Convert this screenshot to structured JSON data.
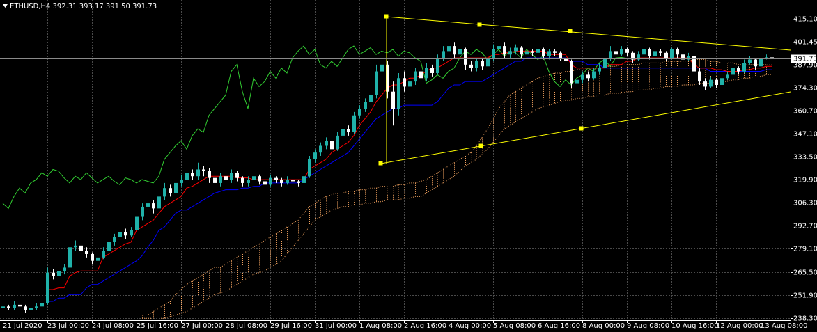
{
  "chart_data": {
    "type": "candlestick",
    "header": "ETHUSD,H4  392.31 393.17 391.50 391.73",
    "categories": [
      "21 Jul 2020",
      null,
      null,
      null,
      null,
      null,
      null,
      null,
      "23 Jul 00:00",
      null,
      null,
      null,
      null,
      null,
      null,
      null,
      "24 Jul 08:00",
      null,
      null,
      null,
      null,
      null,
      null,
      null,
      "25 Jul 16:00",
      null,
      null,
      null,
      null,
      null,
      null,
      null,
      "27 Jul 00:00",
      null,
      null,
      null,
      null,
      null,
      null,
      null,
      "28 Jul 08:00",
      null,
      null,
      null,
      null,
      null,
      null,
      null,
      "29 Jul 16:00",
      null,
      null,
      null,
      null,
      null,
      null,
      null,
      "31 Jul 00:00",
      null,
      null,
      null,
      null,
      null,
      null,
      null,
      "1 Aug 08:00",
      null,
      null,
      null,
      null,
      null,
      null,
      null,
      "2 Aug 16:00",
      null,
      null,
      null,
      null,
      null,
      null,
      null,
      "4 Aug 00:00",
      null,
      null,
      null,
      null,
      null,
      null,
      null,
      "5 Aug 08:00",
      null,
      null,
      null,
      null,
      null,
      null,
      null,
      "6 Aug 16:00",
      null,
      null,
      null,
      null,
      null,
      null,
      null,
      "8 Aug 00:00",
      null,
      null,
      null,
      null,
      null,
      null,
      null,
      "9 Aug 08:00",
      null,
      null,
      null,
      null,
      null,
      null,
      null,
      "10 Aug 16:00",
      null,
      null,
      null,
      null,
      null,
      null,
      null,
      "12 Aug 00:00",
      null,
      null,
      null,
      null,
      null,
      null,
      null,
      "13 Aug 08:00",
      null,
      null
    ],
    "open": [
      244,
      245,
      244,
      246,
      245,
      243,
      244,
      245,
      247,
      265,
      263,
      266,
      268,
      280,
      281,
      278,
      276,
      272,
      274,
      278,
      283,
      286,
      289,
      287,
      290,
      298,
      304,
      306,
      303,
      310,
      315,
      312,
      318,
      320,
      324,
      322,
      326,
      325,
      321,
      318,
      322,
      320,
      324,
      321,
      318,
      320,
      322,
      319,
      317,
      321,
      320,
      318,
      320,
      319,
      318,
      322,
      332,
      336,
      340,
      343,
      338,
      346,
      350,
      348,
      358,
      362,
      366,
      370,
      384,
      388,
      372,
      362,
      380,
      375,
      378,
      384,
      380,
      386,
      383,
      392,
      396,
      399,
      394,
      397,
      388,
      386,
      390,
      387,
      392,
      397,
      399,
      394,
      396,
      398,
      394,
      396,
      395,
      397,
      393,
      396,
      395,
      392,
      390,
      377,
      379,
      382,
      380,
      384,
      386,
      392,
      396,
      394,
      397,
      395,
      391,
      394,
      397,
      393,
      396,
      395,
      392,
      397,
      394,
      391,
      393,
      384,
      378,
      375,
      379,
      376,
      380,
      382,
      386,
      384,
      389,
      391,
      387,
      392,
      392.31
    ],
    "high": [
      247,
      246,
      248,
      247,
      246,
      246,
      247,
      249,
      268,
      267,
      268,
      270,
      283,
      284,
      282,
      280,
      277,
      276,
      280,
      285,
      288,
      291,
      291,
      292,
      300,
      306,
      309,
      308,
      312,
      318,
      317,
      320,
      323,
      327,
      326,
      330,
      328,
      327,
      323,
      324,
      323,
      326,
      325,
      322,
      322,
      324,
      323,
      320,
      323,
      322,
      321,
      322,
      321,
      320,
      324,
      334,
      338,
      342,
      345,
      344,
      348,
      352,
      352,
      360,
      364,
      368,
      372,
      388,
      405,
      390,
      378,
      383,
      384,
      381,
      386,
      386,
      389,
      388,
      394,
      399,
      402,
      401,
      399,
      398,
      390,
      392,
      392,
      394,
      400,
      408,
      401,
      398,
      400,
      399,
      398,
      397,
      398,
      398,
      397,
      397,
      396,
      394,
      391,
      381,
      384,
      384,
      386,
      389,
      394,
      399,
      398,
      399,
      398,
      396,
      396,
      400,
      398,
      397,
      397,
      396,
      398,
      398,
      395,
      395,
      394,
      386,
      380,
      381,
      380,
      382,
      384,
      388,
      387,
      391,
      393,
      392,
      394,
      394,
      393.17
    ],
    "low": [
      242,
      243,
      243,
      244,
      241,
      242,
      243,
      244,
      246,
      261,
      262,
      264,
      267,
      278,
      276,
      274,
      270,
      270,
      273,
      277,
      281,
      285,
      285,
      286,
      289,
      296,
      302,
      300,
      301,
      308,
      310,
      311,
      316,
      318,
      320,
      320,
      322,
      318,
      315,
      316,
      317,
      318,
      319,
      316,
      316,
      318,
      317,
      315,
      316,
      318,
      316,
      317,
      317,
      316,
      317,
      321,
      330,
      334,
      338,
      336,
      337,
      344,
      346,
      347,
      356,
      360,
      364,
      368,
      380,
      368,
      352,
      358,
      372,
      373,
      376,
      377,
      378,
      381,
      382,
      390,
      394,
      392,
      392,
      385,
      384,
      384,
      385,
      386,
      390,
      396,
      392,
      392,
      394,
      392,
      392,
      393,
      393,
      391,
      391,
      393,
      390,
      388,
      374,
      375,
      377,
      378,
      379,
      382,
      385,
      390,
      392,
      393,
      393,
      389,
      390,
      393,
      391,
      392,
      393,
      390,
      391,
      392,
      389,
      390,
      382,
      376,
      373,
      374,
      374,
      375,
      379,
      381,
      382,
      383,
      388,
      385,
      386,
      391,
      391.5
    ],
    "close": [
      245,
      244,
      246,
      245,
      243,
      244,
      245,
      247,
      265,
      263,
      266,
      268,
      280,
      281,
      278,
      276,
      272,
      274,
      278,
      283,
      286,
      289,
      287,
      290,
      298,
      304,
      306,
      303,
      310,
      315,
      312,
      318,
      320,
      324,
      322,
      326,
      325,
      321,
      318,
      322,
      320,
      324,
      321,
      318,
      320,
      322,
      319,
      317,
      321,
      320,
      318,
      320,
      319,
      318,
      322,
      332,
      336,
      340,
      343,
      338,
      346,
      350,
      348,
      358,
      362,
      366,
      370,
      384,
      388,
      372,
      362,
      380,
      375,
      378,
      384,
      380,
      386,
      383,
      392,
      396,
      399,
      394,
      397,
      388,
      386,
      390,
      387,
      392,
      397,
      399,
      394,
      396,
      398,
      394,
      396,
      395,
      397,
      393,
      396,
      395,
      392,
      390,
      377,
      379,
      382,
      380,
      384,
      386,
      392,
      396,
      394,
      397,
      395,
      391,
      394,
      397,
      393,
      396,
      395,
      392,
      397,
      394,
      391,
      393,
      384,
      378,
      375,
      379,
      376,
      380,
      382,
      386,
      384,
      389,
      391,
      387,
      392,
      392.31,
      391.73
    ],
    "up_color": "#20b2aa",
    "down_color": "#ffffff",
    "tenkan": {
      "color": "#ff0000",
      "values": [
        null,
        null,
        null,
        null,
        null,
        null,
        null,
        null,
        255,
        255,
        256,
        256,
        263,
        265,
        266,
        266,
        266,
        266,
        274,
        276,
        278,
        280,
        282,
        283,
        290,
        292,
        294,
        296,
        300,
        304,
        306,
        308,
        310,
        315,
        316,
        318,
        320,
        322,
        322,
        322,
        322,
        322,
        321,
        321,
        321,
        320,
        320,
        320,
        320,
        320,
        320,
        320,
        320,
        320,
        320,
        326,
        328,
        330,
        332,
        336,
        338,
        340,
        342,
        346,
        352,
        356,
        360,
        366,
        370,
        374,
        376,
        376,
        378,
        380,
        380,
        382,
        384,
        386,
        386,
        388,
        390,
        392,
        392,
        392,
        392,
        392,
        392,
        392,
        394,
        394,
        395,
        395,
        396,
        396,
        396,
        396,
        396,
        396,
        394,
        394,
        394,
        394,
        388,
        386,
        386,
        386,
        386,
        386,
        386,
        388,
        388,
        388,
        390,
        390,
        392,
        392,
        392,
        392,
        392,
        392,
        392,
        392,
        392,
        392,
        388,
        386,
        386,
        386,
        385,
        385,
        384,
        384,
        384,
        385,
        385,
        386,
        386,
        387,
        387
      ]
    },
    "kijun": {
      "color": "#0000ff",
      "values": [
        null,
        null,
        null,
        null,
        null,
        null,
        null,
        null,
        248,
        248,
        250,
        250,
        252,
        252,
        252,
        256,
        258,
        258,
        260,
        262,
        264,
        266,
        268,
        270,
        272,
        275,
        280,
        284,
        290,
        292,
        296,
        300,
        302,
        302,
        304,
        306,
        308,
        310,
        312,
        313,
        314,
        314,
        314,
        315,
        315,
        316,
        316,
        318,
        318,
        318,
        318,
        318,
        318,
        318,
        320,
        322,
        324,
        326,
        328,
        330,
        332,
        334,
        336,
        340,
        344,
        348,
        352,
        356,
        358,
        360,
        362,
        362,
        364,
        364,
        364,
        364,
        364,
        364,
        366,
        370,
        374,
        376,
        376,
        378,
        378,
        378,
        378,
        380,
        382,
        384,
        386,
        388,
        390,
        390,
        392,
        392,
        392,
        392,
        392,
        392,
        392,
        392,
        390,
        390,
        390,
        388,
        388,
        388,
        386,
        386,
        386,
        386,
        386,
        386,
        386,
        386,
        386,
        386,
        386,
        386,
        386,
        386,
        386,
        386,
        386,
        386,
        386,
        384,
        384,
        384,
        384,
        384,
        384,
        384,
        384,
        384,
        384,
        385,
        385
      ]
    },
    "chikou": {
      "color": "#32cd32",
      "values": [
        306,
        303,
        310,
        315,
        312,
        318,
        320,
        324,
        322,
        326,
        325,
        321,
        318,
        322,
        320,
        324,
        321,
        318,
        320,
        322,
        319,
        317,
        321,
        320,
        318,
        320,
        319,
        318,
        322,
        332,
        336,
        340,
        343,
        338,
        346,
        350,
        348,
        358,
        362,
        366,
        370,
        384,
        388,
        372,
        362,
        380,
        375,
        378,
        384,
        380,
        386,
        383,
        392,
        396,
        399,
        394,
        397,
        388,
        386,
        390,
        387,
        392,
        397,
        399,
        394,
        396,
        398,
        394,
        396,
        395,
        397,
        393,
        396,
        395,
        392,
        390,
        377,
        379,
        382,
        380,
        384,
        386,
        392,
        396,
        394,
        397,
        395,
        391,
        394,
        397,
        393,
        396,
        395,
        392,
        397,
        394,
        391,
        393,
        384,
        378,
        375,
        379,
        376,
        380,
        382,
        386,
        384,
        389,
        391,
        387,
        392,
        392.31,
        391.73,
        null,
        null,
        null,
        null,
        null,
        null,
        null,
        null,
        null,
        null,
        null,
        null,
        null,
        null,
        null,
        null,
        null,
        null,
        null,
        null,
        null,
        null,
        null,
        null,
        null,
        null
      ]
    },
    "span_a": {
      "color": "#f4a460",
      "values": [
        null,
        null,
        null,
        null,
        null,
        null,
        null,
        null,
        null,
        null,
        null,
        null,
        null,
        null,
        null,
        null,
        null,
        null,
        null,
        null,
        null,
        null,
        null,
        null,
        null,
        240,
        240,
        242,
        244,
        246,
        248,
        252,
        255,
        258,
        260,
        262,
        264,
        266,
        268,
        268,
        270,
        272,
        274,
        276,
        278,
        280,
        282,
        284,
        286,
        288,
        290,
        292,
        294,
        296,
        300,
        304,
        306,
        308,
        310,
        311,
        312,
        312,
        313,
        313,
        314,
        314,
        315,
        315,
        316,
        316,
        316,
        317,
        317,
        318,
        318,
        319,
        320,
        322,
        324,
        326,
        328,
        330,
        332,
        334,
        336,
        340,
        345,
        350,
        356,
        362,
        366,
        370,
        372,
        374,
        376,
        378,
        380,
        381,
        382,
        383,
        383,
        384,
        384,
        385,
        385,
        386,
        386,
        386,
        387,
        387,
        387,
        388,
        388,
        388,
        388,
        389,
        389,
        389,
        389,
        390,
        390,
        390,
        390,
        390,
        391,
        391,
        391,
        390,
        390,
        389,
        389,
        389,
        388,
        388,
        388,
        388,
        388,
        388,
        388
      ]
    },
    "span_b": {
      "color": "#f4a460",
      "values": [
        null,
        null,
        null,
        null,
        null,
        null,
        null,
        null,
        null,
        null,
        null,
        null,
        null,
        null,
        null,
        null,
        null,
        null,
        null,
        null,
        null,
        null,
        null,
        null,
        null,
        238,
        238,
        238,
        238,
        238,
        239,
        240,
        241,
        242,
        244,
        246,
        248,
        250,
        252,
        253,
        254,
        256,
        258,
        260,
        262,
        264,
        265,
        266,
        268,
        270,
        272,
        276,
        280,
        284,
        288,
        292,
        296,
        298,
        300,
        302,
        303,
        304,
        304,
        305,
        305,
        306,
        306,
        307,
        307,
        308,
        308,
        308,
        309,
        309,
        310,
        310,
        312,
        314,
        316,
        318,
        320,
        322,
        325,
        328,
        330,
        332,
        335,
        338,
        342,
        346,
        350,
        352,
        354,
        356,
        358,
        360,
        362,
        363,
        364,
        365,
        366,
        367,
        367,
        368,
        368,
        369,
        369,
        370,
        370,
        371,
        371,
        371,
        372,
        372,
        373,
        373,
        373,
        374,
        374,
        375,
        375,
        375,
        376,
        376,
        376,
        377,
        377,
        377,
        378,
        378,
        378,
        379,
        379,
        380,
        380,
        381,
        381,
        382,
        382
      ]
    },
    "ylim": [
      236.9,
      426.2
    ],
    "yticks": [
      {
        "value": 415.1,
        "label": "415.10"
      },
      401.45,
      {
        "value": 387.9,
        "label": "387.90"
      },
      {
        "value": 374.3,
        "label": "374.30"
      },
      {
        "value": 360.7,
        "label": "360.70"
      },
      {
        "value": 347.1,
        "label": "347.10"
      },
      {
        "value": 333.5,
        "label": "333.50"
      },
      {
        "value": 319.9,
        "label": "319.90"
      },
      {
        "value": 306.3,
        "label": "306.30"
      },
      {
        "value": 292.7,
        "label": "292.70"
      },
      {
        "value": 279.1,
        "label": "279.10"
      },
      {
        "value": 265.5,
        "label": "265.50"
      },
      {
        "value": 251.9,
        "label": "251.90"
      },
      {
        "value": 238.3,
        "label": "238.30"
      }
    ],
    "grid": true
  }
}
